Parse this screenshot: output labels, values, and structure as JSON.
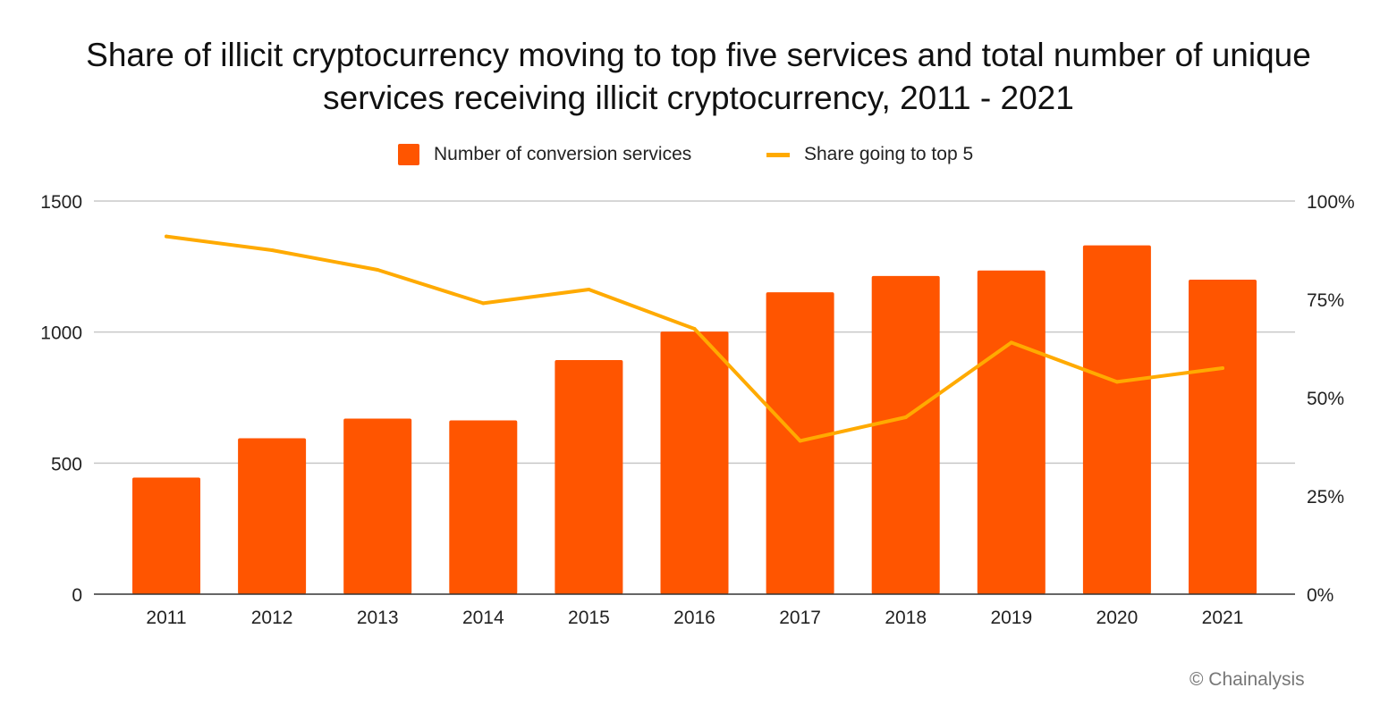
{
  "header": {
    "title_line1": "Share of illicit cryptocurrency moving to top five services and total number of unique",
    "title_line2": "services receiving illicit cryptocurrency, 2011 - 2021"
  },
  "legend": {
    "bar_label": "Number of conversion services",
    "line_label": "Share going to top 5"
  },
  "credit": "© Chainalysis",
  "colors": {
    "bar": "#FF5500",
    "line": "#FFAA00",
    "grid": "#C8C8C8",
    "axis": "#333333"
  },
  "chart_data": {
    "type": "bar",
    "title": "Share of illicit cryptocurrency moving to top five services and total number of unique services receiving illicit cryptocurrency, 2011 - 2021",
    "categories": [
      "2011",
      "2012",
      "2013",
      "2014",
      "2015",
      "2016",
      "2017",
      "2018",
      "2019",
      "2020",
      "2021"
    ],
    "series": [
      {
        "name": "Number of conversion services",
        "type": "bar",
        "axis": "left",
        "values": [
          445,
          595,
          670,
          663,
          893,
          1002,
          1152,
          1214,
          1235,
          1331,
          1200
        ]
      },
      {
        "name": "Share going to top 5",
        "type": "line",
        "axis": "right",
        "values": [
          91,
          87.5,
          82.5,
          74,
          77.5,
          67.5,
          39,
          45,
          64,
          54,
          57.5
        ]
      }
    ],
    "y_left": {
      "min": 0,
      "max": 1500,
      "ticks": [
        0,
        500,
        1000,
        1500
      ],
      "tick_labels": [
        "0",
        "500",
        "1000",
        "1500"
      ]
    },
    "y_right": {
      "min": 0,
      "max": 100,
      "ticks": [
        0,
        25,
        50,
        75,
        100
      ],
      "tick_labels": [
        "0%",
        "25%",
        "50%",
        "75%",
        "100%"
      ],
      "unit": "%"
    },
    "grid": true,
    "legend_position": "top"
  }
}
